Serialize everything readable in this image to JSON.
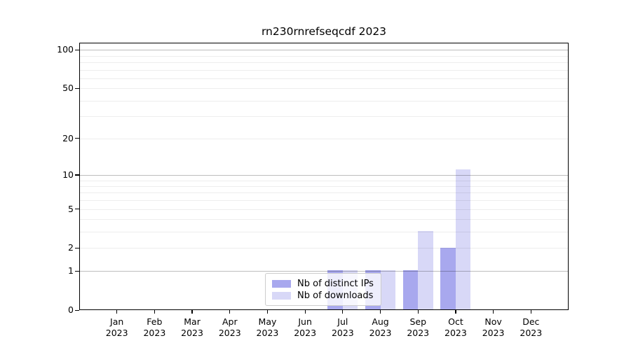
{
  "title": "rn230rnrefseqcdf 2023",
  "colors": {
    "distinct_ips_bar": "#a8a8ee",
    "downloads_bar": "#d8d8f7",
    "axis": "#000000",
    "grid_major": "#bdbdbd",
    "grid_minor": "#ededed",
    "legend_border": "#cccccc"
  },
  "chart_data": {
    "type": "bar",
    "title": "rn230rnrefseqcdf 2023",
    "categories": [
      "Jan 2023",
      "Feb 2023",
      "Mar 2023",
      "Apr 2023",
      "May 2023",
      "Jun 2023",
      "Jul 2023",
      "Aug 2023",
      "Sep 2023",
      "Oct 2023",
      "Nov 2023",
      "Dec 2023"
    ],
    "series": [
      {
        "name": "Nb of distinct IPs",
        "color": "#a8a8ee",
        "values": [
          0,
          0,
          0,
          0,
          0,
          0,
          1,
          1,
          1,
          2,
          0,
          0
        ]
      },
      {
        "name": "Nb of downloads",
        "color": "#d8d8f7",
        "values": [
          0,
          0,
          0,
          0,
          0,
          0,
          1,
          1,
          3,
          11,
          0,
          0
        ]
      }
    ],
    "xlabel": "",
    "ylabel": "",
    "yscale": "log(1+x)",
    "yticks": [
      0,
      1,
      2,
      5,
      10,
      20,
      50,
      100
    ],
    "ylim": [
      0,
      112
    ],
    "grid": "horizontal, major and minor",
    "legend_position": "lower center inside plot"
  }
}
